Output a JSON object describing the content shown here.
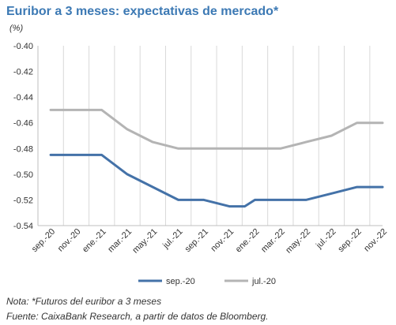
{
  "chart_data": {
    "type": "line",
    "title": "Euribor a 3 meses: expectativas de mercado*",
    "unit_label": "(%)",
    "categories": [
      "sep.-20",
      "nov.-20",
      "ene.-21",
      "mar.-21",
      "may.-21",
      "jul.-21",
      "sep.-21",
      "nov.-21",
      "ene.-22",
      "mar.-22",
      "may.-22",
      "jul.-22",
      "sep.-22",
      "nov.-22"
    ],
    "series": [
      {
        "name": "sep.-20",
        "color": "#4472a8",
        "x": [
          0,
          1,
          2,
          3,
          4,
          5,
          6,
          7,
          7.6,
          8,
          8.5,
          9,
          10,
          11,
          12,
          13
        ],
        "values": [
          -0.485,
          -0.485,
          -0.485,
          -0.5,
          -0.51,
          -0.52,
          -0.52,
          -0.525,
          -0.525,
          -0.52,
          -0.52,
          -0.52,
          -0.52,
          -0.515,
          -0.51,
          -0.51
        ]
      },
      {
        "name": "jul.-20",
        "color": "#b4b4b4",
        "x": [
          0,
          1,
          2,
          3,
          4,
          5,
          6,
          7,
          8,
          9,
          10,
          11,
          12,
          13
        ],
        "values": [
          -0.45,
          -0.45,
          -0.45,
          -0.465,
          -0.475,
          -0.48,
          -0.48,
          -0.48,
          -0.48,
          -0.48,
          -0.475,
          -0.47,
          -0.46,
          -0.46
        ]
      }
    ],
    "ylim": [
      -0.54,
      -0.4
    ],
    "y_ticks": [
      "-0.40",
      "-0.42",
      "-0.44",
      "-0.46",
      "-0.48",
      "-0.50",
      "-0.52",
      "-0.54"
    ],
    "grid": "vertical",
    "legend_position": "bottom"
  },
  "notes": {
    "line1": "Nota: *Futuros del euribor a 3 meses",
    "line2": "Fuente: CaixaBank Research, a partir de datos de Bloomberg."
  }
}
